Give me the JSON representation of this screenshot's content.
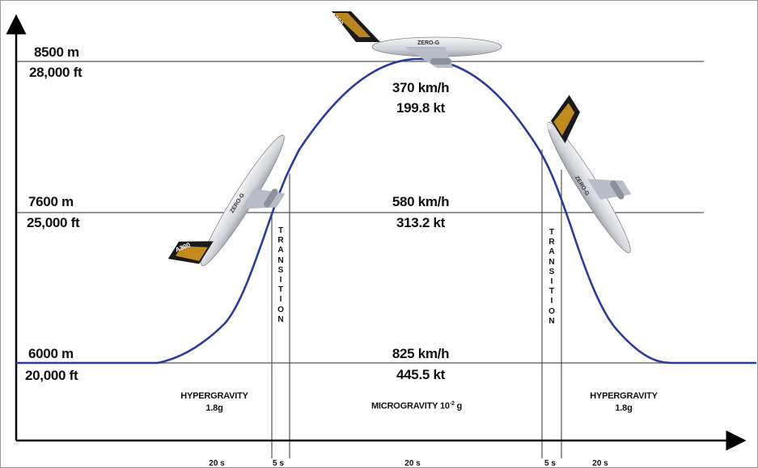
{
  "diagram": {
    "altitudes": [
      {
        "meters": "8500 m",
        "feet": "28,000 ft"
      },
      {
        "meters": "7600 m",
        "feet": "25,000 ft"
      },
      {
        "meters": "6000 m",
        "feet": "20,000 ft"
      }
    ],
    "speeds": [
      {
        "kmh": "370 km/h",
        "kt": "199.8 kt"
      },
      {
        "kmh": "580 km/h",
        "kt": "313.2 kt"
      },
      {
        "kmh": "825 km/h",
        "kt": "445.5 kt"
      }
    ],
    "phases": {
      "left_hyper": {
        "name": "HYPERGRAVITY",
        "g": "1.8g"
      },
      "micro": {
        "name": "MICROGRAVITY 10",
        "exp": "-2",
        "unit": "g"
      },
      "right_hyper": {
        "name": "HYPERGRAVITY",
        "g": "1.8g"
      }
    },
    "transition_label": "TRANSITION",
    "durations": [
      "20 s",
      "5 s",
      "20 s",
      "5 s",
      "20 s"
    ],
    "aircraft": {
      "type": "A300",
      "livery": "ZERO-G"
    },
    "colors": {
      "curve": "#2b3a9e",
      "lines": "#555555",
      "axis": "#000000",
      "tail": "#e0a020"
    }
  }
}
